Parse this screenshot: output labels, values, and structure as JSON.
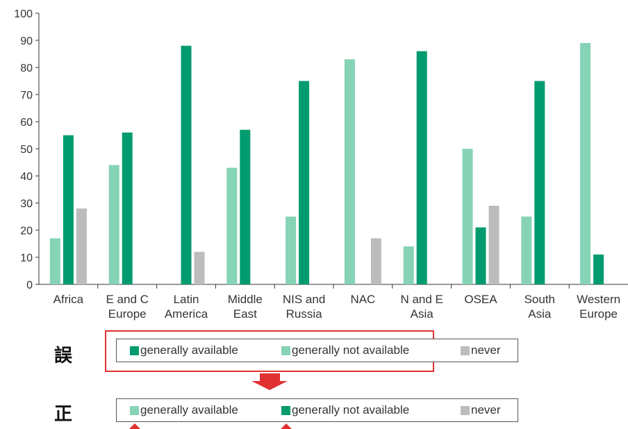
{
  "chart_data": {
    "type": "bar",
    "categories": [
      [
        "Africa"
      ],
      [
        "E and C",
        "Europe"
      ],
      [
        "Latin",
        "America"
      ],
      [
        "Middle",
        "East"
      ],
      [
        "NIS and",
        "Russia"
      ],
      [
        "NAC"
      ],
      [
        "N and E",
        "Asia"
      ],
      [
        "OSEA"
      ],
      [
        "South",
        "Asia"
      ],
      [
        "Western",
        "Europe"
      ]
    ],
    "series": [
      {
        "color": "#86d3b6",
        "values": [
          17,
          44,
          null,
          43,
          25,
          83,
          14,
          50,
          25,
          89
        ]
      },
      {
        "color": "#009b6e",
        "values": [
          55,
          56,
          88,
          57,
          75,
          null,
          86,
          21,
          75,
          11
        ]
      },
      {
        "color": "#bcbcbc",
        "values": [
          28,
          null,
          12,
          null,
          null,
          17,
          null,
          29,
          null,
          null
        ]
      }
    ],
    "ylim": [
      0,
      100
    ],
    "yticks": [
      0,
      10,
      20,
      30,
      40,
      50,
      60,
      70,
      80,
      90,
      100
    ],
    "grid": false
  },
  "legends": {
    "wrong": {
      "marker": "誤",
      "items": [
        {
          "label": "generally available",
          "color": "#009b6e"
        },
        {
          "label": "generally not available",
          "color": "#86d3b6"
        },
        {
          "label": "never",
          "color": "#bcbcbc"
        }
      ]
    },
    "correct": {
      "marker": "正",
      "items": [
        {
          "label": "generally available",
          "color": "#86d3b6"
        },
        {
          "label": "generally not available",
          "color": "#009b6e"
        },
        {
          "label": "never",
          "color": "#bcbcbc"
        }
      ]
    }
  },
  "colors": {
    "highlight": "#e03030",
    "axis": "#333333"
  }
}
